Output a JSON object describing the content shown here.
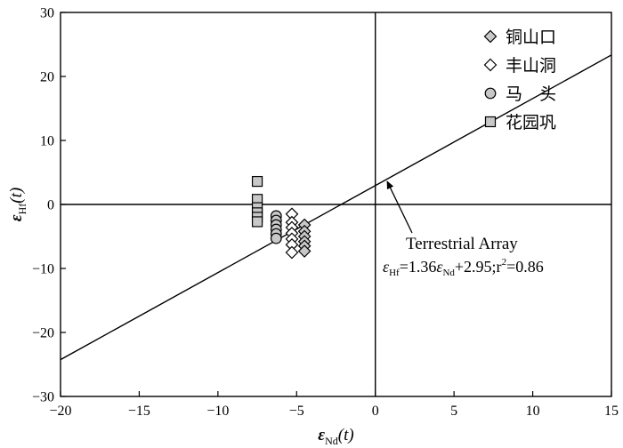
{
  "chart_data": {
    "type": "scatter",
    "title": "",
    "xlabel": {
      "symbol": "ε",
      "sub": "Nd",
      "suffix": "(t)"
    },
    "ylabel": {
      "symbol": "ε",
      "sub": "Hf",
      "suffix": "(t)"
    },
    "xlim": [
      -20,
      15
    ],
    "ylim": [
      -30,
      30
    ],
    "xticks": [
      -20,
      -15,
      -10,
      -5,
      0,
      5,
      10,
      15
    ],
    "yticks": [
      -30,
      -20,
      -10,
      0,
      10,
      20,
      30
    ],
    "xtick_labels": [
      "−20",
      "−15",
      "−10",
      "−5",
      "0",
      "5",
      "10",
      "15"
    ],
    "ytick_labels": [
      "−30",
      "−20",
      "−10",
      "0",
      "10",
      "20",
      "30"
    ],
    "grid": false,
    "legend_position": "top-right",
    "reference_lines": {
      "x": 0,
      "y": 0
    },
    "regression": {
      "slope": 1.36,
      "intercept": 2.95,
      "label": "Terrestrial Array",
      "eq_lhs_sub": "Hf",
      "eq_mid": "=1.36",
      "eq_rhs_sub": "Nd",
      "eq_tail": "+2.95;r",
      "eq_sup": "2",
      "eq_r2": "=0.86",
      "arrow_target": [
        0.7,
        4.0
      ]
    },
    "series": [
      {
        "name": "铜山口",
        "marker": "diamond",
        "fill": "#c8c8c8",
        "points": [
          [
            -4.5,
            -3.2
          ],
          [
            -4.5,
            -4.2
          ],
          [
            -4.5,
            -5.0
          ],
          [
            -4.5,
            -5.8
          ],
          [
            -4.5,
            -6.5
          ],
          [
            -4.5,
            -7.3
          ]
        ]
      },
      {
        "name": "丰山洞",
        "marker": "diamond",
        "fill": "#ffffff",
        "points": [
          [
            -5.3,
            -1.5
          ],
          [
            -5.3,
            -2.8
          ],
          [
            -5.3,
            -3.6
          ],
          [
            -5.3,
            -4.5
          ],
          [
            -5.3,
            -5.4
          ],
          [
            -5.3,
            -6.3
          ],
          [
            -5.3,
            -7.5
          ]
        ]
      },
      {
        "name": "马　头",
        "marker": "circle",
        "fill": "#c8c8c8",
        "points": [
          [
            -6.3,
            -1.8
          ],
          [
            -6.3,
            -2.5
          ],
          [
            -6.3,
            -3.2
          ],
          [
            -6.3,
            -3.9
          ],
          [
            -6.3,
            -4.6
          ],
          [
            -6.3,
            -5.3
          ]
        ]
      },
      {
        "name": "花园巩",
        "marker": "square",
        "fill": "#c8c8c8",
        "points": [
          [
            -7.5,
            3.6
          ],
          [
            -7.5,
            0.8
          ],
          [
            -7.5,
            -0.5
          ],
          [
            -7.5,
            -1.3
          ],
          [
            -7.5,
            -2.0
          ],
          [
            -7.5,
            -2.7
          ]
        ]
      }
    ]
  }
}
